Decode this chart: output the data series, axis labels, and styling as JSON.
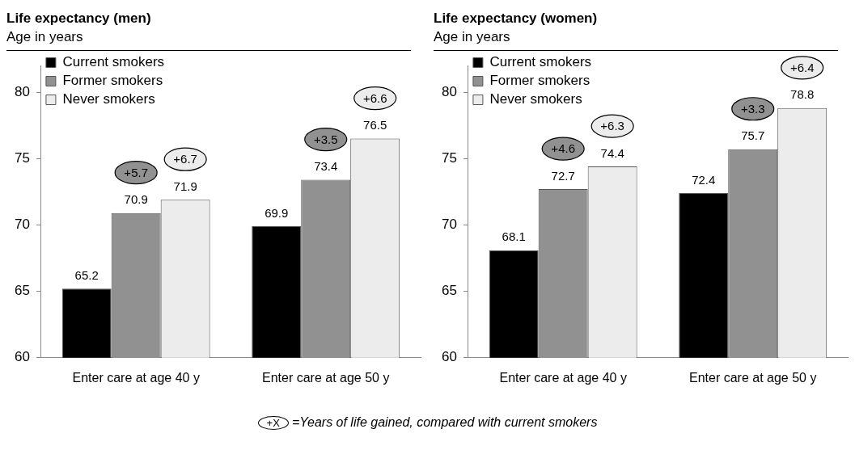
{
  "chart_data": [
    {
      "type": "bar",
      "title": "Life expectancy (men)",
      "subtitle": "Age in years",
      "categories": [
        "Enter care at age 40 y",
        "Enter care at age 50 y"
      ],
      "series": [
        {
          "name": "Current smokers",
          "color": "#000000",
          "values": [
            65.2,
            69.9
          ]
        },
        {
          "name": "Former smokers",
          "color": "#919191",
          "values": [
            70.9,
            73.4
          ]
        },
        {
          "name": "Never smokers",
          "color": "#ececec",
          "values": [
            71.9,
            76.5
          ]
        }
      ],
      "ylim": [
        60,
        82
      ],
      "yticks": [
        60,
        65,
        70,
        75,
        80
      ],
      "grid": false,
      "legend": "top left",
      "data_labels": true,
      "annotations": [
        "+5.7",
        "+6.7",
        "+3.5",
        "+6.6",
        "+X",
        "=Years of life gained, compared with current smokers"
      ]
    },
    {
      "type": "bar",
      "title": "Life expectancy (women)",
      "subtitle": "Age in years",
      "categories": [
        "Enter care at age 40 y",
        "Enter care at age 50 y"
      ],
      "series": [
        {
          "name": "Current smokers",
          "color": "#000000",
          "values": [
            68.1,
            72.4
          ]
        },
        {
          "name": "Former smokers",
          "color": "#919191",
          "values": [
            72.7,
            75.7
          ]
        },
        {
          "name": "Never smokers",
          "color": "#ececec",
          "values": [
            74.4,
            78.8
          ]
        }
      ],
      "ylim": [
        60,
        82
      ],
      "yticks": [
        60,
        65,
        70,
        75,
        80
      ],
      "grid": false,
      "legend": "top left",
      "data_labels": true,
      "annotations": [
        "+4.6",
        "+6.3",
        "+3.3",
        "+6.4"
      ]
    }
  ]
}
